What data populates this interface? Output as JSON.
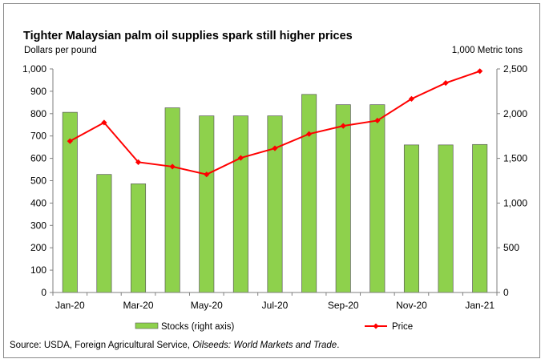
{
  "chart_data": {
    "type": "bar",
    "title": "Tighter Malaysian palm oil supplies spark still higher prices",
    "ylabel_left": "Dollars per pound",
    "ylabel_right": "1,000 Metric tons",
    "categories": [
      "Jan-20",
      "Feb-20",
      "Mar-20",
      "Apr-20",
      "May-20",
      "Jun-20",
      "Jul-20",
      "Aug-20",
      "Sep-20",
      "Oct-20",
      "Nov-20",
      "Dec-20",
      "Jan-21"
    ],
    "x_tick_labels": [
      "Jan-20",
      "Mar-20",
      "May-20",
      "Jul-20",
      "Sep-20",
      "Nov-20",
      "Jan-21"
    ],
    "left_axis": {
      "min": 0,
      "max": 1000,
      "step": 100,
      "tick_labels": [
        "0",
        "100",
        "200",
        "300",
        "400",
        "500",
        "600",
        "700",
        "800",
        "900",
        "1,000"
      ]
    },
    "right_axis": {
      "min": 0,
      "max": 2500,
      "step": 500,
      "tick_labels": [
        "0",
        "500",
        "1,000",
        "1,500",
        "2,000",
        "2,500"
      ]
    },
    "series": [
      {
        "name": "Stocks (right axis)",
        "type": "bar",
        "axis": "right",
        "color": "#8ed14c",
        "values": [
          2015,
          1320,
          1215,
          2065,
          1975,
          1975,
          1975,
          2215,
          2100,
          2100,
          1650,
          1650,
          1655
        ]
      },
      {
        "name": "Price",
        "type": "line",
        "axis": "left",
        "color": "#ff0000",
        "values": [
          677,
          760,
          583,
          563,
          528,
          602,
          645,
          709,
          745,
          769,
          866,
          937,
          990
        ]
      }
    ],
    "legend_position": "bottom",
    "grid": false
  },
  "source": {
    "prefix": "Source: USDA, Foreign Agricultural Service, ",
    "italic": "Oilseeds: World Markets and Trade",
    "suffix": "."
  }
}
